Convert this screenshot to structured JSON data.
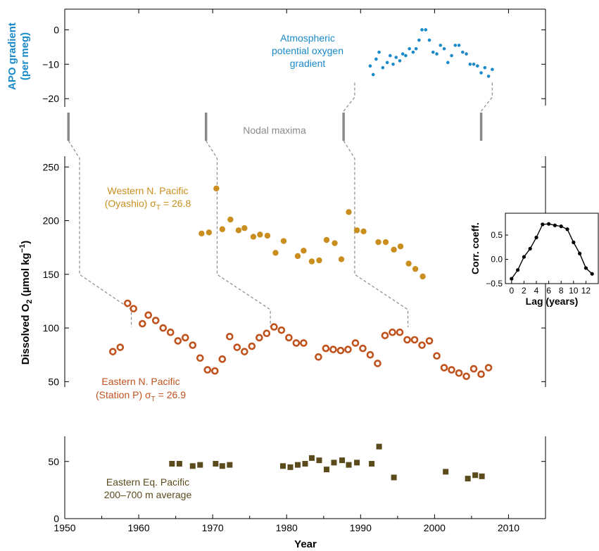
{
  "chart_data": [
    {
      "type": "scatter",
      "panel": "apo",
      "ylabel_line1": "APO gradient",
      "ylabel_line2": "(per meg)",
      "yticks": [
        0,
        -10,
        -20
      ],
      "ylim": [
        -22,
        6
      ],
      "color": "#1a8ac9",
      "annotation": [
        "Atmospheric",
        "potential oxygen",
        "gradient"
      ],
      "series": [
        {
          "x": [
            1991.3,
            1991.7,
            1992.1,
            1992.5,
            1993.0,
            1993.6,
            1994.0,
            1994.4,
            1994.8,
            1995.3,
            1995.7,
            1996.1,
            1996.6,
            1997.1,
            1997.5,
            1997.9,
            1998.3,
            1998.8,
            1999.3,
            1999.8,
            2000.3,
            2000.8,
            2001.3,
            2001.8,
            2002.3,
            2002.8,
            2003.3,
            2003.8,
            2004.3,
            2004.8,
            2005.3,
            2005.8,
            2006.3,
            2006.8,
            2007.3,
            2007.8
          ],
          "y": [
            -10.5,
            -13,
            -8.5,
            -6.5,
            -11,
            -9.5,
            -7.5,
            -10,
            -8,
            -9,
            -7,
            -7.5,
            -5.5,
            -6.5,
            -5.5,
            -3,
            0,
            0,
            -3,
            -6.5,
            -7,
            -4.5,
            -5.5,
            -9.5,
            -7.5,
            -4.5,
            -4.5,
            -6.5,
            -7,
            -10,
            -10,
            -10.5,
            -12.5,
            -11,
            -13.5,
            -11.5
          ]
        }
      ]
    },
    {
      "type": "scatter",
      "panel": "o2",
      "ylabel": "Dissolved O",
      "ylabel_sub": "2",
      "ylabel_unit": "(µmol kg",
      "ylabel_sup": "−1",
      "ylabel_end": ")",
      "yticks": [
        50,
        100,
        150,
        200,
        250
      ],
      "ylim": [
        45,
        260
      ],
      "series": [
        {
          "label_line1": "Western N. Pacific",
          "label_line2": "(Oyashio) σ",
          "label_sub": "T",
          "label_value": " = 26.8",
          "color": "#c98e1e",
          "marker": "filled",
          "x": [
            1968.5,
            1969.5,
            1970.5,
            1971.3,
            1972.4,
            1973.5,
            1974.3,
            1975.5,
            1976.4,
            1977.4,
            1978.5,
            1979.6,
            1981.5,
            1982.3,
            1983.4,
            1984.4,
            1985.4,
            1986.5,
            1987.4,
            1988.4,
            1989.5,
            1990.4,
            1992.4,
            1993.4,
            1994.5,
            1995.4,
            1996.5,
            1997.4,
            1998.4
          ],
          "y": [
            188,
            189,
            230,
            192,
            201,
            191,
            193,
            185,
            187,
            186,
            170,
            181,
            167,
            172,
            162,
            163,
            182,
            179,
            164,
            208,
            191,
            190,
            180,
            180,
            173,
            176,
            160,
            155,
            148
          ]
        },
        {
          "label_line1": "Eastern N. Pacific",
          "label_line2": "(Station P) σ",
          "label_sub": "T",
          "label_value": " = 26.9",
          "color": "#c0521e",
          "marker": "open",
          "x": [
            1956.5,
            1957.5,
            1958.5,
            1959.3,
            1960.5,
            1961.3,
            1962.3,
            1963.3,
            1964.3,
            1965.3,
            1966.3,
            1967.3,
            1968.3,
            1969.3,
            1970.3,
            1971.3,
            1972.3,
            1973.3,
            1974.3,
            1975.3,
            1976.3,
            1977.3,
            1978.3,
            1979.3,
            1980.3,
            1981.3,
            1982.3,
            1984.3,
            1985.3,
            1986.3,
            1987.3,
            1988.3,
            1989.3,
            1990.3,
            1991.3,
            1992.3,
            1993.3,
            1994.3,
            1995.3,
            1996.3,
            1997.3,
            1998.3,
            1999.3,
            2000.3,
            2001.3,
            2002.3,
            2003.3,
            2004.3,
            2005.3,
            2006.3,
            2007.3
          ],
          "y": [
            78,
            82,
            123,
            118,
            104,
            112,
            107,
            100,
            96,
            88,
            91,
            84,
            72,
            61,
            60,
            71,
            92,
            82,
            78,
            83,
            91,
            95,
            101,
            98,
            91,
            86,
            86,
            73,
            81,
            80,
            79,
            80,
            86,
            81,
            75,
            67,
            93,
            96,
            96,
            89,
            89,
            84,
            88,
            74,
            63,
            61,
            58,
            55,
            62,
            57,
            63
          ]
        }
      ],
      "events": {
        "label": "Nodal maxima",
        "years": [
          1950.5,
          1969.1,
          1987.7,
          2006.3
        ],
        "lags": [
          1952,
          1970.6,
          1989.2,
          2007.8
        ],
        "o2_end_years": [
          1959,
          1977.8,
          1996.4
        ]
      }
    },
    {
      "type": "scatter",
      "panel": "eq",
      "label_line1": "Eastern Eq. Pacific",
      "label_line2": "200–700 m average",
      "color": "#5a4a1c",
      "marker": "square",
      "yticks": [
        0,
        50
      ],
      "ylim": [
        0,
        72
      ],
      "xlabel": "Year",
      "xticks": [
        1950,
        1960,
        1970,
        1980,
        1990,
        2000,
        2010
      ],
      "xlim": [
        1950,
        2015
      ],
      "series": [
        {
          "x": [
            1964.5,
            1965.5,
            1967.3,
            1968.3,
            1970.4,
            1971.3,
            1972.3,
            1979.5,
            1980.5,
            1981.5,
            1982.5,
            1983.4,
            1984.4,
            1985.4,
            1986.4,
            1987.5,
            1988.4,
            1989.5,
            1991.5,
            1992.5,
            1994.5,
            2001.5,
            2004.5,
            2005.5,
            2006.4
          ],
          "y": [
            48,
            48,
            46,
            47,
            48,
            46,
            47,
            46,
            45,
            47,
            48,
            53,
            51,
            43,
            49,
            51,
            47,
            49,
            48,
            63,
            36,
            41,
            35,
            38,
            37
          ]
        }
      ]
    },
    {
      "type": "line",
      "panel": "inset",
      "ylabel": "Corr. coeff.",
      "xlabel": "Lag (years)",
      "xticks": [
        0,
        2,
        4,
        6,
        8,
        10,
        12
      ],
      "yticks": [
        0.5,
        0.0,
        -0.5
      ],
      "ytick_labels": [
        "0.5",
        "0.0",
        "−0.5"
      ],
      "xlim": [
        -1,
        14
      ],
      "ylim": [
        -0.5,
        0.95
      ],
      "x": [
        0,
        1,
        2,
        3,
        4,
        5,
        6,
        7,
        8,
        9,
        10,
        11,
        12,
        13
      ],
      "y": [
        -0.4,
        -0.22,
        0.05,
        0.22,
        0.45,
        0.72,
        0.73,
        0.7,
        0.68,
        0.62,
        0.35,
        0.12,
        -0.18,
        -0.3
      ]
    }
  ]
}
